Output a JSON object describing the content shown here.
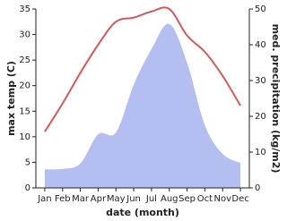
{
  "chart_data": {
    "type": "line-area",
    "categories": [
      "Jan",
      "Feb",
      "Mar",
      "Apr",
      "May",
      "Jun",
      "Jul",
      "Aug",
      "Sep",
      "Oct",
      "Nov",
      "Dec"
    ],
    "x_label": "date (month)",
    "y_label": "max temp (C)",
    "y2_label": "med. precipitation (kg/m2)",
    "ylim": [
      0,
      35
    ],
    "yticks": [
      0,
      5,
      10,
      15,
      20,
      25,
      30,
      35
    ],
    "y2lim": [
      0,
      50
    ],
    "y2ticks": [
      0,
      10,
      20,
      30,
      40,
      50
    ],
    "series": [
      {
        "name": "max temp",
        "color": "#cd5c5c",
        "values": [
          11,
          16.5,
          22.5,
          28,
          32.5,
          33.3,
          34.5,
          35,
          29.8,
          26.6,
          21.9,
          16.1
        ]
      },
      {
        "name": "precipitation",
        "color": "#b4bef0",
        "axis": "y2",
        "values": [
          5.2,
          5.3,
          6.8,
          15,
          15.5,
          28.8,
          38.8,
          45.8,
          35,
          17.5,
          9.5,
          7
        ]
      }
    ]
  }
}
